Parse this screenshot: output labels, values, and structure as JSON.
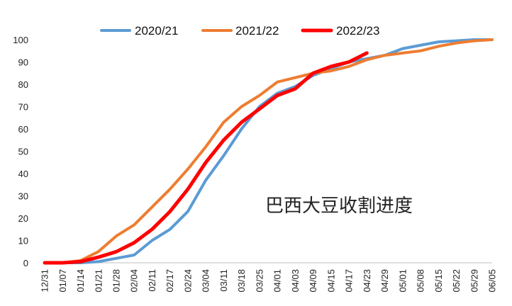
{
  "chart_data": {
    "type": "line",
    "title": "",
    "annotation": "巴西大豆收割进度",
    "xlabel": "",
    "ylabel": "",
    "ylim": [
      0,
      100
    ],
    "yticks": [
      0,
      10,
      20,
      30,
      40,
      50,
      60,
      70,
      80,
      90,
      100
    ],
    "categories": [
      "12/31",
      "01/07",
      "01/14",
      "01/21",
      "01/28",
      "02/04",
      "02/11",
      "02/17",
      "02/24",
      "03/04",
      "03/11",
      "03/18",
      "03/25",
      "04/01",
      "04/03",
      "04/09",
      "04/15",
      "04/17",
      "04/23",
      "04/29",
      "05/01",
      "05/08",
      "05/15",
      "05/22",
      "05/29",
      "06/05"
    ],
    "legend_position": "top",
    "grid": false,
    "series": [
      {
        "name": "2020/21",
        "color": "#5b9bd5",
        "width": 4,
        "values": [
          0,
          0,
          0,
          0.5,
          2,
          3.5,
          10,
          15,
          23,
          37,
          48,
          60,
          70,
          76,
          79,
          84,
          87,
          90,
          91.5,
          93,
          96,
          97.5,
          99,
          99.5,
          100,
          100
        ]
      },
      {
        "name": "2021/22",
        "color": "#ed7d31",
        "width": 4,
        "values": [
          0,
          0,
          1,
          5,
          12,
          17,
          25,
          33,
          42,
          52,
          63,
          70,
          75,
          81,
          83,
          85,
          86,
          88,
          91,
          93,
          94,
          95,
          97,
          98.5,
          99.5,
          100
        ]
      },
      {
        "name": "2022/23",
        "color": "#ff0000",
        "width": 5,
        "values": [
          0,
          0,
          0.5,
          2.5,
          5,
          9,
          15,
          23,
          33,
          45,
          55,
          63,
          69,
          75,
          78,
          85,
          88,
          90,
          94,
          null,
          null,
          null,
          null,
          null,
          null,
          null
        ]
      }
    ]
  }
}
